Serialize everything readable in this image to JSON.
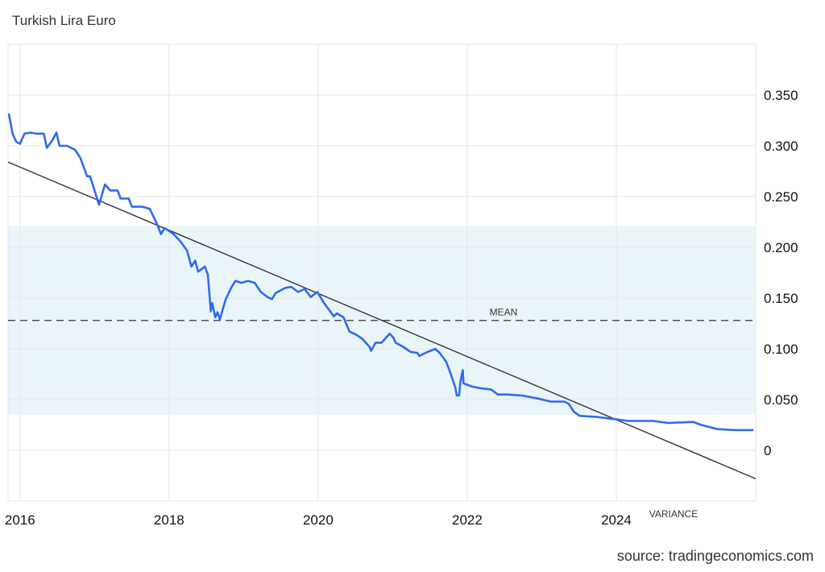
{
  "chart_data": {
    "type": "line",
    "title": "Turkish Lira Euro",
    "source": "source: tradingeconomics.com",
    "xlabel": "",
    "ylabel": "",
    "xlim": [
      2015.84,
      2025.87
    ],
    "ylim": [
      -0.05,
      0.4
    ],
    "grid": true,
    "x_ticks": [
      2016,
      2018,
      2020,
      2022,
      2024
    ],
    "x_tick_labels": [
      "2016",
      "2018",
      "2020",
      "2022",
      "2024"
    ],
    "y_ticks": [
      0,
      0.05,
      0.1,
      0.15,
      0.2,
      0.25,
      0.3,
      0.35
    ],
    "y_tick_labels": [
      "0",
      "0.050",
      "0.100",
      "0.150",
      "0.200",
      "0.250",
      "0.300",
      "0.350"
    ],
    "mean": {
      "label": "MEAN",
      "value": 0.128
    },
    "variance_band": {
      "label": "VARIANCE",
      "low": 0.035,
      "high": 0.221
    },
    "trend": {
      "x": [
        2015.84,
        2025.87
      ],
      "y": [
        0.284,
        -0.028
      ]
    },
    "series": [
      {
        "name": "Turkish Lira Euro",
        "color": "#2f6bf0",
        "x": [
          2015.85,
          2015.9,
          2015.95,
          2016.0,
          2016.06,
          2016.14,
          2016.22,
          2016.32,
          2016.36,
          2016.44,
          2016.49,
          2016.53,
          2016.63,
          2016.74,
          2016.81,
          2016.9,
          2016.94,
          2017.06,
          2017.14,
          2017.21,
          2017.31,
          2017.35,
          2017.46,
          2017.5,
          2017.64,
          2017.74,
          2017.85,
          2017.89,
          2017.94,
          2018.06,
          2018.15,
          2018.24,
          2018.3,
          2018.35,
          2018.39,
          2018.48,
          2018.52,
          2018.56,
          2018.58,
          2018.62,
          2018.65,
          2018.68,
          2018.76,
          2018.84,
          2018.89,
          2018.97,
          2019.06,
          2019.15,
          2019.23,
          2019.32,
          2019.38,
          2019.43,
          2019.56,
          2019.64,
          2019.73,
          2019.82,
          2019.9,
          2019.99,
          2020.08,
          2020.16,
          2020.21,
          2020.25,
          2020.34,
          2020.42,
          2020.51,
          2020.59,
          2020.69,
          2020.71,
          2020.77,
          2020.85,
          2020.96,
          2021.01,
          2021.04,
          2021.14,
          2021.24,
          2021.33,
          2021.36,
          2021.44,
          2021.57,
          2021.63,
          2021.72,
          2021.78,
          2021.84,
          2021.86,
          2021.89,
          2021.91,
          2021.94,
          2021.95,
          2022.06,
          2022.19,
          2022.32,
          2022.41,
          2022.54,
          2022.74,
          2022.95,
          2023.12,
          2023.3,
          2023.36,
          2023.43,
          2023.51,
          2023.73,
          2023.95,
          2024.16,
          2024.49,
          2024.7,
          2025.03,
          2025.14,
          2025.35,
          2025.57,
          2025.84
        ],
        "y": [
          0.332,
          0.312,
          0.304,
          0.302,
          0.312,
          0.313,
          0.312,
          0.312,
          0.298,
          0.306,
          0.313,
          0.3,
          0.3,
          0.296,
          0.288,
          0.27,
          0.27,
          0.242,
          0.262,
          0.256,
          0.256,
          0.248,
          0.248,
          0.24,
          0.24,
          0.238,
          0.221,
          0.213,
          0.219,
          0.213,
          0.206,
          0.197,
          0.181,
          0.187,
          0.176,
          0.181,
          0.173,
          0.137,
          0.145,
          0.131,
          0.136,
          0.129,
          0.149,
          0.161,
          0.167,
          0.165,
          0.167,
          0.165,
          0.156,
          0.151,
          0.149,
          0.155,
          0.16,
          0.161,
          0.156,
          0.159,
          0.151,
          0.156,
          0.145,
          0.137,
          0.132,
          0.135,
          0.131,
          0.117,
          0.114,
          0.11,
          0.102,
          0.098,
          0.106,
          0.106,
          0.115,
          0.111,
          0.106,
          0.102,
          0.097,
          0.096,
          0.093,
          0.096,
          0.1,
          0.096,
          0.087,
          0.075,
          0.062,
          0.054,
          0.054,
          0.068,
          0.079,
          0.066,
          0.063,
          0.061,
          0.06,
          0.055,
          0.055,
          0.054,
          0.051,
          0.048,
          0.048,
          0.046,
          0.038,
          0.034,
          0.033,
          0.031,
          0.029,
          0.029,
          0.027,
          0.028,
          0.025,
          0.021,
          0.02,
          0.02
        ]
      }
    ],
    "colors": {
      "band": "#eaf5fa",
      "grid": "#e6e6e6",
      "trend": "#333333",
      "mean": "#333333"
    }
  }
}
